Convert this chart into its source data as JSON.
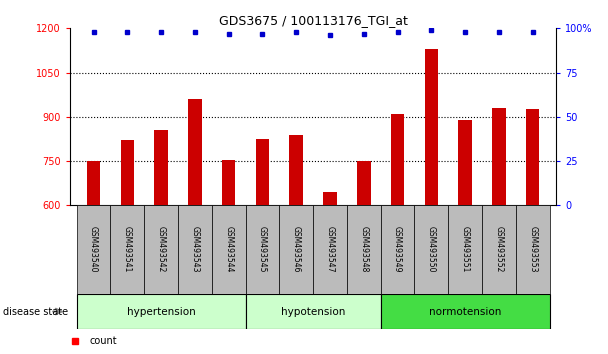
{
  "title": "GDS3675 / 100113176_TGI_at",
  "samples": [
    "GSM493540",
    "GSM493541",
    "GSM493542",
    "GSM493543",
    "GSM493544",
    "GSM493545",
    "GSM493546",
    "GSM493547",
    "GSM493548",
    "GSM493549",
    "GSM493550",
    "GSM493551",
    "GSM493552",
    "GSM493553"
  ],
  "counts": [
    750,
    820,
    855,
    960,
    755,
    825,
    840,
    645,
    750,
    910,
    1130,
    890,
    930,
    925
  ],
  "percentiles": [
    98,
    98,
    98,
    98,
    97,
    97,
    98,
    96,
    97,
    98,
    99,
    98,
    98,
    98
  ],
  "groups": [
    {
      "label": "hypertension",
      "start": 0,
      "end": 5
    },
    {
      "label": "hypotension",
      "start": 5,
      "end": 9
    },
    {
      "label": "normotension",
      "start": 9,
      "end": 14
    }
  ],
  "group_colors": [
    "#ccffcc",
    "#ccffcc",
    "#44dd44"
  ],
  "bar_color": "#cc0000",
  "dot_color": "#0000cc",
  "ylim_left": [
    600,
    1200
  ],
  "ylim_right": [
    0,
    100
  ],
  "yticks_left": [
    600,
    750,
    900,
    1050,
    1200
  ],
  "yticks_right": [
    0,
    25,
    50,
    75,
    100
  ],
  "grid_values": [
    750,
    900,
    1050
  ],
  "background_color": "#ffffff",
  "tick_area_color": "#bbbbbb"
}
